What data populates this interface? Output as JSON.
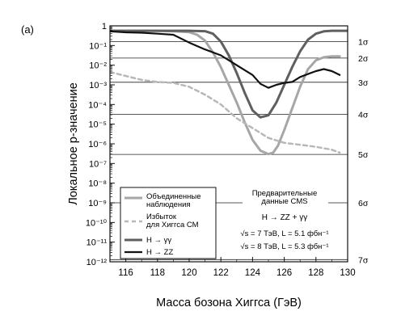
{
  "panel_label": "(a)",
  "chart_data": {
    "type": "line",
    "xlabel": "Масса бозона Хиггса (ГэВ)",
    "ylabel": "Локальное p-значение",
    "xlim": [
      115,
      130
    ],
    "ylim_log10": [
      -12,
      0
    ],
    "y_scale": "log",
    "x_ticks": [
      116,
      118,
      120,
      122,
      124,
      126,
      128,
      130
    ],
    "y_ticks": [
      {
        "exp": 0,
        "label": "1"
      },
      {
        "exp": -1,
        "label": "10⁻¹"
      },
      {
        "exp": -2,
        "label": "10⁻²"
      },
      {
        "exp": -3,
        "label": "10⁻³"
      },
      {
        "exp": -4,
        "label": "10⁻⁴"
      },
      {
        "exp": -5,
        "label": "10⁻⁵"
      },
      {
        "exp": -6,
        "label": "10⁻⁶"
      },
      {
        "exp": -7,
        "label": "10⁻⁷"
      },
      {
        "exp": -8,
        "label": "10⁻⁸"
      },
      {
        "exp": -9,
        "label": "10⁻⁹"
      },
      {
        "exp": -10,
        "label": "10⁻¹⁰"
      },
      {
        "exp": -11,
        "label": "10⁻¹¹"
      },
      {
        "exp": -12,
        "label": "10⁻¹²"
      }
    ],
    "sigma_lines": [
      {
        "label": "1σ",
        "log_p": -0.8
      },
      {
        "label": "2σ",
        "log_p": -1.64
      },
      {
        "label": "3σ",
        "log_p": -2.87
      },
      {
        "label": "4σ",
        "log_p": -4.5
      },
      {
        "label": "5σ",
        "log_p": -6.54
      },
      {
        "label": "6σ",
        "log_p": -9.0
      },
      {
        "label": "7σ",
        "log_p": -11.89
      }
    ],
    "series": [
      {
        "name": "Объединенные наблюдения",
        "color": "#a6a6a6",
        "dash": "",
        "width": 3,
        "x": [
          115,
          116,
          117,
          118,
          119,
          120,
          120.5,
          121,
          121.5,
          122,
          122.5,
          123,
          123.5,
          124,
          124.5,
          125,
          125.3,
          125.6,
          126,
          126.5,
          127,
          127.5,
          128,
          128.5,
          129,
          129.5
        ],
        "log_p": [
          -0.25,
          -0.25,
          -0.25,
          -0.25,
          -0.27,
          -0.32,
          -0.45,
          -0.75,
          -1.35,
          -2.1,
          -3.0,
          -3.9,
          -4.9,
          -5.8,
          -6.35,
          -6.52,
          -6.45,
          -6.1,
          -5.3,
          -4.2,
          -3.1,
          -2.2,
          -1.75,
          -1.6,
          -1.55,
          -1.55
        ]
      },
      {
        "name": "Избыток для Хиггса СМ",
        "color": "#b8b8b8",
        "dash": "5,4",
        "width": 2.5,
        "x": [
          115,
          116,
          117,
          118,
          119,
          120,
          121,
          122,
          123,
          124,
          125,
          126,
          127,
          128,
          129,
          129.5
        ],
        "log_p": [
          -2.35,
          -2.55,
          -2.75,
          -2.85,
          -2.9,
          -3.1,
          -3.5,
          -4.0,
          -4.7,
          -5.2,
          -5.7,
          -5.95,
          -6.05,
          -6.15,
          -6.3,
          -6.45
        ]
      },
      {
        "name": "H → γγ",
        "color": "#5f5f5f",
        "dash": "",
        "width": 3,
        "x": [
          115,
          116,
          117,
          118,
          119,
          120,
          121,
          121.5,
          122,
          122.5,
          123,
          123.5,
          124,
          124.5,
          125,
          125.5,
          126,
          126.5,
          127,
          127.5,
          128,
          128.5,
          129,
          129.5,
          130
        ],
        "log_p": [
          -0.25,
          -0.25,
          -0.25,
          -0.25,
          -0.25,
          -0.25,
          -0.27,
          -0.4,
          -0.8,
          -1.5,
          -2.4,
          -3.4,
          -4.3,
          -4.65,
          -4.55,
          -3.9,
          -3.0,
          -2.1,
          -1.3,
          -0.7,
          -0.4,
          -0.28,
          -0.25,
          -0.25,
          -0.25
        ]
      },
      {
        "name": "H → ZZ",
        "color": "#111111",
        "dash": "",
        "width": 2.2,
        "x": [
          115,
          116,
          117,
          118,
          119,
          120,
          121,
          122,
          123,
          124,
          124.5,
          125,
          125.5,
          126,
          126.5,
          127,
          127.5,
          128,
          128.5,
          129,
          129.5
        ],
        "log_p": [
          -0.28,
          -0.33,
          -0.35,
          -0.4,
          -0.45,
          -0.85,
          -1.2,
          -1.5,
          -2.0,
          -2.5,
          -2.95,
          -3.15,
          -3.0,
          -2.9,
          -2.85,
          -2.6,
          -2.45,
          -2.3,
          -2.2,
          -2.3,
          -2.5
        ]
      }
    ],
    "annotation": {
      "line1": "Предварительные",
      "line2": "данные CMS",
      "channels": "H → ZZ + γγ",
      "run1": "√s = 7 ТэВ, L = 5.1 фбн⁻¹",
      "run2": "√s = 8 ТэВ, L = 5.3 фбн⁻¹"
    },
    "legend_position": "bottom-left"
  }
}
